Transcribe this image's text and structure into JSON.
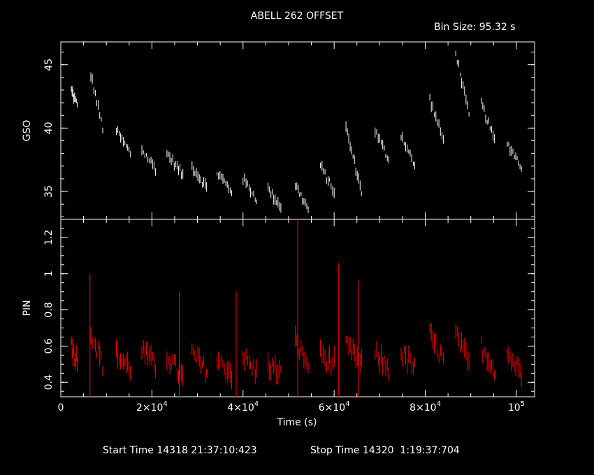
{
  "chart_data": {
    "type": "line",
    "title": "ABELL 262 OFFSET",
    "bin_size_label": "Bin Size: 95.32 s",
    "xlabel": "Time (s)",
    "xlim": [
      0,
      104000
    ],
    "x_ticks": [
      {
        "value": 0,
        "mant": "0",
        "exp": ""
      },
      {
        "value": 20000,
        "mant": "2×10",
        "exp": "4"
      },
      {
        "value": 40000,
        "mant": "4×10",
        "exp": "4"
      },
      {
        "value": 60000,
        "mant": "6×10",
        "exp": "4"
      },
      {
        "value": 80000,
        "mant": "8×10",
        "exp": "4"
      },
      {
        "value": 100000,
        "mant": "10",
        "exp": "5"
      }
    ],
    "start_time": "Start Time 14318 21:37:10:423",
    "stop_time": "Stop Time 14320  1:19:37:704",
    "panels": [
      {
        "name": "GSO",
        "ylabel": "GSO",
        "ylim": [
          32.8,
          46.8
        ],
        "y_ticks": [
          "35",
          "40",
          "45"
        ],
        "y_tick_values": [
          35,
          40,
          45
        ],
        "color": "#ffffff",
        "segments": [
          {
            "x0": 2300,
            "x1": 3600,
            "y0": 43.0,
            "y1": 41.8
          },
          {
            "x0": 6600,
            "x1": 9200,
            "y0": 44.2,
            "y1": 40.0
          },
          {
            "x0": 12200,
            "x1": 15300,
            "y0": 39.8,
            "y1": 38.0
          },
          {
            "x0": 17800,
            "x1": 20800,
            "y0": 38.3,
            "y1": 36.8
          },
          {
            "x0": 23300,
            "x1": 26800,
            "y0": 38.0,
            "y1": 36.3
          },
          {
            "x0": 28800,
            "x1": 32000,
            "y0": 37.0,
            "y1": 35.3
          },
          {
            "x0": 34300,
            "x1": 37500,
            "y0": 36.5,
            "y1": 35.0
          },
          {
            "x0": 40000,
            "x1": 43000,
            "y0": 36.0,
            "y1": 34.4
          },
          {
            "x0": 45500,
            "x1": 48300,
            "y0": 35.2,
            "y1": 33.8
          },
          {
            "x0": 51500,
            "x1": 54300,
            "y0": 35.5,
            "y1": 33.6
          },
          {
            "x0": 57000,
            "x1": 60000,
            "y0": 37.0,
            "y1": 35.0
          },
          {
            "x0": 62600,
            "x1": 66000,
            "y0": 40.0,
            "y1": 35.0
          },
          {
            "x0": 69000,
            "x1": 72000,
            "y0": 39.8,
            "y1": 37.5
          },
          {
            "x0": 74700,
            "x1": 77700,
            "y0": 39.5,
            "y1": 37.0
          },
          {
            "x0": 81000,
            "x1": 84000,
            "y0": 42.3,
            "y1": 39.0
          },
          {
            "x0": 86700,
            "x1": 89600,
            "y0": 46.0,
            "y1": 41.0
          },
          {
            "x0": 92300,
            "x1": 95200,
            "y0": 42.0,
            "y1": 39.0
          },
          {
            "x0": 98000,
            "x1": 101100,
            "y0": 38.8,
            "y1": 37.0
          }
        ]
      },
      {
        "name": "PIN",
        "ylabel": "PIN",
        "ylim": [
          0.32,
          1.3
        ],
        "y_ticks": [
          "0.4",
          "0.6",
          "0.8",
          "1",
          "1.2"
        ],
        "y_tick_values": [
          0.4,
          0.6,
          0.8,
          1.0,
          1.2
        ],
        "color": "#ff0000",
        "segments": [
          {
            "x0": 2300,
            "x1": 3600,
            "y0": 0.6,
            "y1": 0.52
          },
          {
            "x0": 6600,
            "x1": 9200,
            "y0": 0.68,
            "y1": 0.5
          },
          {
            "x0": 12200,
            "x1": 15300,
            "y0": 0.55,
            "y1": 0.48
          },
          {
            "x0": 17800,
            "x1": 20800,
            "y0": 0.58,
            "y1": 0.48
          },
          {
            "x0": 23300,
            "x1": 26800,
            "y0": 0.55,
            "y1": 0.42
          },
          {
            "x0": 28800,
            "x1": 32000,
            "y0": 0.56,
            "y1": 0.46
          },
          {
            "x0": 34300,
            "x1": 37500,
            "y0": 0.52,
            "y1": 0.45
          },
          {
            "x0": 40000,
            "x1": 43000,
            "y0": 0.54,
            "y1": 0.45
          },
          {
            "x0": 45500,
            "x1": 48300,
            "y0": 0.5,
            "y1": 0.45
          },
          {
            "x0": 51500,
            "x1": 54300,
            "y0": 0.62,
            "y1": 0.5
          },
          {
            "x0": 57000,
            "x1": 60000,
            "y0": 0.55,
            "y1": 0.5
          },
          {
            "x0": 62600,
            "x1": 66000,
            "y0": 0.6,
            "y1": 0.5
          },
          {
            "x0": 69000,
            "x1": 72000,
            "y0": 0.55,
            "y1": 0.48
          },
          {
            "x0": 74700,
            "x1": 77700,
            "y0": 0.56,
            "y1": 0.48
          },
          {
            "x0": 81000,
            "x1": 84000,
            "y0": 0.66,
            "y1": 0.52
          },
          {
            "x0": 86700,
            "x1": 89600,
            "y0": 0.66,
            "y1": 0.5
          },
          {
            "x0": 92300,
            "x1": 95200,
            "y0": 0.6,
            "y1": 0.48
          },
          {
            "x0": 98000,
            "x1": 101100,
            "y0": 0.56,
            "y1": 0.45
          }
        ],
        "spikes": [
          {
            "x": 52000,
            "y": 1.3
          },
          {
            "x": 61000,
            "y": 1.06
          },
          {
            "x": 6400,
            "y": 1.0
          },
          {
            "x": 65300,
            "y": 0.96
          },
          {
            "x": 38500,
            "y": 0.9
          },
          {
            "x": 26000,
            "y": 0.9
          }
        ]
      }
    ]
  }
}
